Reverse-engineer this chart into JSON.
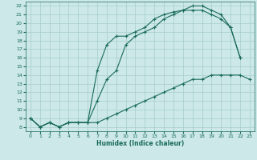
{
  "xlabel": "Humidex (Indice chaleur)",
  "xlim": [
    -0.5,
    23.5
  ],
  "ylim": [
    7.5,
    22.5
  ],
  "xticks": [
    0,
    1,
    2,
    3,
    4,
    5,
    6,
    7,
    8,
    9,
    10,
    11,
    12,
    13,
    14,
    15,
    16,
    17,
    18,
    19,
    20,
    21,
    22,
    23
  ],
  "yticks": [
    8,
    9,
    10,
    11,
    12,
    13,
    14,
    15,
    16,
    17,
    18,
    19,
    20,
    21,
    22
  ],
  "bg_color": "#cce8e8",
  "grid_color": "#a8cccc",
  "line_color": "#1a6b5a",
  "line1_x": [
    0,
    1,
    2,
    3,
    4,
    5,
    6,
    7,
    8,
    9,
    10,
    11,
    12,
    13,
    14,
    15,
    16,
    17,
    18,
    19,
    20,
    21,
    22
  ],
  "line1_y": [
    9.0,
    8.0,
    8.5,
    8.0,
    8.5,
    8.5,
    8.5,
    14.5,
    17.5,
    18.5,
    18.5,
    19.0,
    19.5,
    20.5,
    21.0,
    21.3,
    21.5,
    22.0,
    22.0,
    21.5,
    21.0,
    19.5,
    16.0
  ],
  "line2_x": [
    0,
    1,
    2,
    3,
    4,
    5,
    6,
    7,
    8,
    9,
    10,
    11,
    12,
    13,
    14,
    15,
    16,
    17,
    18,
    19,
    20,
    21,
    22
  ],
  "line2_y": [
    9.0,
    8.0,
    8.5,
    8.0,
    8.5,
    8.5,
    8.5,
    11.0,
    13.5,
    14.5,
    17.5,
    18.5,
    19.0,
    19.5,
    20.5,
    21.0,
    21.5,
    21.5,
    21.5,
    21.0,
    20.5,
    19.5,
    16.0
  ],
  "line3_x": [
    0,
    1,
    2,
    3,
    4,
    5,
    6,
    7,
    8,
    9,
    10,
    11,
    12,
    13,
    14,
    15,
    16,
    17,
    18,
    19,
    20,
    21,
    22,
    23
  ],
  "line3_y": [
    9.0,
    8.0,
    8.5,
    8.0,
    8.5,
    8.5,
    8.5,
    8.5,
    9.0,
    9.5,
    10.0,
    10.5,
    11.0,
    11.5,
    12.0,
    12.5,
    13.0,
    13.5,
    13.5,
    14.0,
    14.0,
    14.0,
    14.0,
    13.5
  ],
  "markersize": 3,
  "linewidth": 0.8
}
